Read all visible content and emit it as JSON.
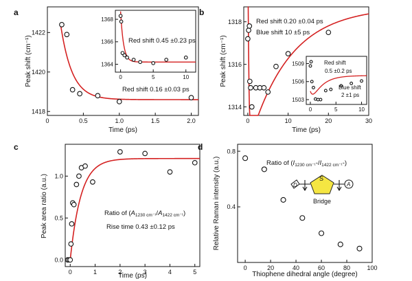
{
  "chart_data": [
    {
      "panel": "a",
      "type": "scatter",
      "xlabel": "Time (ps)",
      "ylabel": "Peak shift (cm⁻¹)",
      "xlim": [
        0,
        2.1
      ],
      "ylim": [
        1417.8,
        1423.3
      ],
      "xticks": [
        "0",
        "0.5",
        "1.0",
        "1.5",
        "2.0"
      ],
      "xtick_values": [
        0,
        0.5,
        1.0,
        1.5,
        2.0
      ],
      "yticks": [
        "1418",
        "1420",
        "1422"
      ],
      "ytick_values": [
        1418,
        1420,
        1422
      ],
      "points": [
        [
          0.2,
          1422.4
        ],
        [
          0.27,
          1421.9
        ],
        [
          0.35,
          1419.1
        ],
        [
          0.45,
          1418.9
        ],
        [
          0.7,
          1418.8
        ],
        [
          1.0,
          1418.5
        ],
        [
          2.0,
          1418.7
        ]
      ],
      "fit": {
        "y0": 1418.6,
        "amp": 4.7,
        "tau": 0.16,
        "t0": 0.15
      },
      "annotation": "Red shift 0.16 ±0.03 ps",
      "inset": {
        "xlim": [
          -0.8,
          11.5
        ],
        "ylim": [
          1363.3,
          1368.8
        ],
        "xticks": [
          "0",
          "5",
          "10"
        ],
        "xtick_values": [
          0,
          5,
          10
        ],
        "yticks": [
          "1364",
          "1366",
          "1368"
        ],
        "ytick_values": [
          1364,
          1366,
          1368
        ],
        "points": [
          [
            0,
            1368.3
          ],
          [
            0.1,
            1367.8
          ],
          [
            0.3,
            1365.0
          ],
          [
            0.6,
            1364.8
          ],
          [
            1.0,
            1364.6
          ],
          [
            2.0,
            1364.4
          ],
          [
            3.0,
            1364.2
          ],
          [
            5.0,
            1364.1
          ],
          [
            7.0,
            1364.4
          ],
          [
            10.0,
            1364.6
          ]
        ],
        "fit": {
          "y0": 1364.2,
          "amp": 4.5,
          "tau": 0.45,
          "t0": 0
        },
        "annotation": "Red shift  0.45 ±0.23 ps"
      }
    },
    {
      "panel": "b",
      "type": "scatter",
      "xlabel": "Time (ps)",
      "ylabel": "Peak shift (cm⁻¹)",
      "xlim": [
        -1,
        30
      ],
      "ylim": [
        1313.6,
        1318.7
      ],
      "xticks": [
        "0",
        "10",
        "20",
        "30"
      ],
      "xtick_values": [
        0,
        10,
        20,
        30
      ],
      "yticks": [
        "1314",
        "1316",
        "1318"
      ],
      "ytick_values": [
        1314,
        1316,
        1318
      ],
      "points": [
        [
          0,
          1317.2
        ],
        [
          0.2,
          1317.6
        ],
        [
          0.4,
          1317.8
        ],
        [
          0.5,
          1315.2
        ],
        [
          0.7,
          1314.9
        ],
        [
          1,
          1314.0
        ],
        [
          2,
          1314.9
        ],
        [
          3,
          1314.9
        ],
        [
          4,
          1314.9
        ],
        [
          5,
          1314.7
        ],
        [
          7,
          1315.9
        ],
        [
          10,
          1316.5
        ],
        [
          20,
          1317.5
        ]
      ],
      "fit": {
        "A": 1318.7,
        "B": 11.8,
        "tau_fall": 0.2,
        "C": 6.6,
        "tau_rise": 10
      },
      "annotations": [
        "Red shift 0.20 ±0.04 ps",
        "Blue shift 10 ±5 ps"
      ],
      "inset": {
        "xlim": [
          -0.8,
          11
        ],
        "ylim": [
          1502.2,
          1510.2
        ],
        "xticks": [
          "0",
          "5",
          "10"
        ],
        "xtick_values": [
          0,
          5,
          10
        ],
        "yticks": [
          "1503",
          "1506",
          "1509"
        ],
        "ytick_values": [
          1503,
          1506,
          1509
        ],
        "points": [
          [
            0,
            1508.6
          ],
          [
            0.15,
            1509.3
          ],
          [
            0.3,
            1506.0
          ],
          [
            0.6,
            1505.0
          ],
          [
            1,
            1503.1
          ],
          [
            1.5,
            1503.0
          ],
          [
            2,
            1503.0
          ],
          [
            3,
            1504.5
          ],
          [
            4,
            1504.7
          ],
          [
            6,
            1505.3
          ],
          [
            8,
            1505.7
          ],
          [
            10,
            1506.1
          ]
        ],
        "fit": {
          "A": 1507.0,
          "B": 2.6,
          "tau_fall": 0.5,
          "C": 5.2,
          "tau_rise": 2.0
        },
        "annotations": [
          "Red shift",
          "0.5 ±0.2 ps",
          "Blue shift",
          "2 ±1 ps"
        ]
      }
    },
    {
      "panel": "c",
      "type": "scatter",
      "xlabel": "Time (ps)",
      "ylabel": "Peak area ratio (a.u.)",
      "xlim": [
        -0.2,
        5.2
      ],
      "ylim": [
        -0.08,
        1.38
      ],
      "xticks": [
        "0",
        "1",
        "2",
        "3",
        "4",
        "5"
      ],
      "xtick_values": [
        0,
        1,
        2,
        3,
        4,
        5
      ],
      "yticks": [
        "0.0",
        "0.5",
        "1.0"
      ],
      "ytick_values": [
        0,
        0.5,
        1.0
      ],
      "points": [
        [
          -0.1,
          0.0
        ],
        [
          -0.05,
          0.0
        ],
        [
          0.0,
          0.0
        ],
        [
          0.03,
          0.19
        ],
        [
          0.06,
          0.43
        ],
        [
          0.1,
          0.68
        ],
        [
          0.15,
          0.66
        ],
        [
          0.25,
          0.9
        ],
        [
          0.35,
          1.0
        ],
        [
          0.45,
          1.1
        ],
        [
          0.6,
          1.12
        ],
        [
          0.9,
          0.93
        ],
        [
          2.0,
          1.29
        ],
        [
          3.0,
          1.27
        ],
        [
          4.0,
          1.05
        ],
        [
          5.0,
          1.16
        ]
      ],
      "fit": {
        "a": 1.21,
        "tau": 0.43,
        "t0": 0.0
      },
      "annotations": {
        "ratio_prefix": "Ratio of (",
        "ratio_a": "A",
        "ratio_a_sub": "1230 cm⁻¹",
        "ratio_sep": "/",
        "ratio_b": "A",
        "ratio_b_sub": "1422 cm⁻¹",
        "ratio_suffix": ")",
        "rise": "Rise time 0.43 ±0.12 ps"
      }
    },
    {
      "panel": "d",
      "type": "scatter",
      "xlabel": "Thiophene dihedral angle (degree)",
      "ylabel": "Relative Raman intensity (a.u.)",
      "xlim": [
        -6,
        100
      ],
      "ylim": [
        0.0,
        0.85
      ],
      "xticks": [
        "0",
        "20",
        "40",
        "60",
        "80",
        "100"
      ],
      "xtick_values": [
        0,
        20,
        40,
        60,
        80,
        100
      ],
      "yticks": [
        "0.4",
        "0.8"
      ],
      "ytick_values": [
        0.4,
        0.8
      ],
      "points": [
        [
          0,
          0.75
        ],
        [
          15,
          0.67
        ],
        [
          30,
          0.45
        ],
        [
          45,
          0.32
        ],
        [
          60,
          0.21
        ],
        [
          75,
          0.13
        ],
        [
          90,
          0.1
        ]
      ],
      "annotations": {
        "ratio_prefix": "Ratio of (",
        "ratio_a": "I",
        "ratio_a_sub": "1230 cm⁻¹",
        "ratio_sep": "-/",
        "ratio_b": "I",
        "ratio_b_sub": "1422 cm⁻¹",
        "ratio_suffix": "-)"
      },
      "molecule": {
        "donor": "D",
        "sulfur": "S",
        "acceptor": "A",
        "bridge_label": "Bridge",
        "bridge_color": "#f5e642"
      }
    }
  ],
  "colors": {
    "fit": "#d42020",
    "marker_stroke": "#111111",
    "marker_fill": "#ffffff",
    "axis": "#111111"
  }
}
